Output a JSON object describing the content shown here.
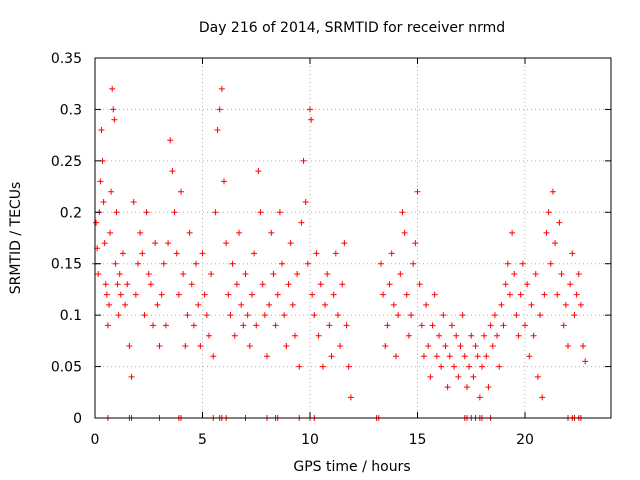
{
  "chart_data": {
    "type": "scatter",
    "title": "Day 216 of 2014, SRMTID for receiver nrmd",
    "xlabel": "GPS time / hours",
    "ylabel": "SRMTID / TECUs",
    "xlim": [
      0,
      24
    ],
    "ylim": [
      0,
      0.35
    ],
    "xticks": [
      0,
      5,
      10,
      15,
      20
    ],
    "xtick_labels": [
      "0",
      "5",
      "10",
      "15",
      "20"
    ],
    "yticks": [
      0,
      0.05,
      0.1,
      0.15,
      0.2,
      0.25,
      0.3,
      0.35
    ],
    "ytick_labels": [
      "0",
      "0.05",
      "0.1",
      "0.15",
      "0.2",
      "0.25",
      "0.3",
      "0.35"
    ],
    "grid": true,
    "marker": "+",
    "series_color": "#ff0000",
    "series": [
      {
        "name": "SRMTID",
        "points": [
          [
            0.0,
            0.15
          ],
          [
            0.05,
            0.19
          ],
          [
            0.1,
            0.165
          ],
          [
            0.15,
            0.14
          ],
          [
            0.2,
            0.2
          ],
          [
            0.25,
            0.23
          ],
          [
            0.3,
            0.28
          ],
          [
            0.35,
            0.25
          ],
          [
            0.4,
            0.21
          ],
          [
            0.45,
            0.17
          ],
          [
            0.5,
            0.13
          ],
          [
            0.55,
            0.12
          ],
          [
            0.6,
            0.09
          ],
          [
            0.65,
            0.11
          ],
          [
            0.7,
            0.18
          ],
          [
            0.75,
            0.22
          ],
          [
            0.8,
            0.32
          ],
          [
            0.85,
            0.3
          ],
          [
            0.9,
            0.29
          ],
          [
            0.95,
            0.15
          ],
          [
            1.0,
            0.2
          ],
          [
            1.05,
            0.13
          ],
          [
            1.1,
            0.1
          ],
          [
            1.15,
            0.14
          ],
          [
            1.2,
            0.12
          ],
          [
            1.3,
            0.16
          ],
          [
            1.4,
            0.11
          ],
          [
            1.5,
            0.13
          ],
          [
            1.6,
            0.07
          ],
          [
            1.7,
            0.04
          ],
          [
            1.8,
            0.21
          ],
          [
            1.9,
            0.12
          ],
          [
            2.0,
            0.15
          ],
          [
            2.1,
            0.18
          ],
          [
            2.2,
            0.16
          ],
          [
            2.3,
            0.1
          ],
          [
            2.4,
            0.2
          ],
          [
            2.5,
            0.14
          ],
          [
            2.6,
            0.13
          ],
          [
            2.7,
            0.09
          ],
          [
            2.8,
            0.17
          ],
          [
            2.9,
            0.11
          ],
          [
            3.0,
            0.07
          ],
          [
            3.1,
            0.12
          ],
          [
            3.2,
            0.15
          ],
          [
            3.3,
            0.09
          ],
          [
            3.4,
            0.17
          ],
          [
            3.5,
            0.27
          ],
          [
            3.6,
            0.24
          ],
          [
            3.7,
            0.2
          ],
          [
            3.8,
            0.16
          ],
          [
            3.9,
            0.12
          ],
          [
            4.0,
            0.22
          ],
          [
            4.1,
            0.14
          ],
          [
            4.2,
            0.07
          ],
          [
            4.3,
            0.1
          ],
          [
            4.4,
            0.18
          ],
          [
            4.5,
            0.13
          ],
          [
            4.6,
            0.09
          ],
          [
            4.7,
            0.15
          ],
          [
            4.8,
            0.11
          ],
          [
            4.9,
            0.07
          ],
          [
            5.0,
            0.16
          ],
          [
            5.1,
            0.12
          ],
          [
            5.2,
            0.1
          ],
          [
            5.3,
            0.08
          ],
          [
            5.4,
            0.14
          ],
          [
            5.5,
            0.06
          ],
          [
            5.6,
            0.2
          ],
          [
            5.7,
            0.28
          ],
          [
            5.8,
            0.3
          ],
          [
            5.9,
            0.32
          ],
          [
            6.0,
            0.23
          ],
          [
            6.1,
            0.17
          ],
          [
            6.2,
            0.12
          ],
          [
            6.3,
            0.1
          ],
          [
            6.4,
            0.15
          ],
          [
            6.5,
            0.08
          ],
          [
            6.6,
            0.13
          ],
          [
            6.7,
            0.18
          ],
          [
            6.8,
            0.11
          ],
          [
            6.9,
            0.09
          ],
          [
            7.0,
            0.14
          ],
          [
            7.1,
            0.1
          ],
          [
            7.2,
            0.07
          ],
          [
            7.3,
            0.12
          ],
          [
            7.4,
            0.16
          ],
          [
            7.5,
            0.09
          ],
          [
            7.6,
            0.24
          ],
          [
            7.7,
            0.2
          ],
          [
            7.8,
            0.13
          ],
          [
            7.9,
            0.1
          ],
          [
            8.0,
            0.06
          ],
          [
            8.1,
            0.11
          ],
          [
            8.2,
            0.18
          ],
          [
            8.3,
            0.14
          ],
          [
            8.4,
            0.09
          ],
          [
            8.5,
            0.12
          ],
          [
            8.6,
            0.2
          ],
          [
            8.7,
            0.15
          ],
          [
            8.8,
            0.1
          ],
          [
            8.9,
            0.07
          ],
          [
            9.0,
            0.13
          ],
          [
            9.1,
            0.17
          ],
          [
            9.2,
            0.11
          ],
          [
            9.3,
            0.08
          ],
          [
            9.4,
            0.14
          ],
          [
            9.5,
            0.05
          ],
          [
            9.6,
            0.19
          ],
          [
            9.7,
            0.25
          ],
          [
            9.8,
            0.21
          ],
          [
            9.9,
            0.15
          ],
          [
            10.0,
            0.3
          ],
          [
            10.05,
            0.29
          ],
          [
            10.1,
            0.12
          ],
          [
            10.2,
            0.1
          ],
          [
            10.3,
            0.16
          ],
          [
            10.4,
            0.08
          ],
          [
            10.5,
            0.13
          ],
          [
            10.6,
            0.05
          ],
          [
            10.7,
            0.11
          ],
          [
            10.8,
            0.14
          ],
          [
            10.9,
            0.09
          ],
          [
            11.0,
            0.06
          ],
          [
            11.1,
            0.12
          ],
          [
            11.2,
            0.16
          ],
          [
            11.3,
            0.1
          ],
          [
            11.4,
            0.07
          ],
          [
            11.5,
            0.13
          ],
          [
            11.6,
            0.17
          ],
          [
            11.7,
            0.09
          ],
          [
            11.8,
            0.05
          ],
          [
            11.9,
            0.02
          ],
          [
            13.3,
            0.15
          ],
          [
            13.4,
            0.12
          ],
          [
            13.5,
            0.07
          ],
          [
            13.6,
            0.09
          ],
          [
            13.7,
            0.13
          ],
          [
            13.8,
            0.16
          ],
          [
            13.9,
            0.11
          ],
          [
            14.0,
            0.06
          ],
          [
            14.1,
            0.1
          ],
          [
            14.2,
            0.14
          ],
          [
            14.3,
            0.2
          ],
          [
            14.4,
            0.18
          ],
          [
            14.5,
            0.12
          ],
          [
            14.6,
            0.08
          ],
          [
            14.7,
            0.1
          ],
          [
            14.8,
            0.15
          ],
          [
            14.9,
            0.17
          ],
          [
            15.0,
            0.22
          ],
          [
            15.1,
            0.13
          ],
          [
            15.2,
            0.09
          ],
          [
            15.3,
            0.06
          ],
          [
            15.4,
            0.11
          ],
          [
            15.5,
            0.07
          ],
          [
            15.6,
            0.04
          ],
          [
            15.7,
            0.09
          ],
          [
            15.8,
            0.12
          ],
          [
            15.9,
            0.06
          ],
          [
            16.0,
            0.08
          ],
          [
            16.1,
            0.05
          ],
          [
            16.2,
            0.1
          ],
          [
            16.3,
            0.07
          ],
          [
            16.4,
            0.03
          ],
          [
            16.5,
            0.06
          ],
          [
            16.6,
            0.09
          ],
          [
            16.7,
            0.05
          ],
          [
            16.8,
            0.08
          ],
          [
            16.9,
            0.04
          ],
          [
            17.0,
            0.07
          ],
          [
            17.1,
            0.1
          ],
          [
            17.2,
            0.06
          ],
          [
            17.3,
            0.03
          ],
          [
            17.4,
            0.05
          ],
          [
            17.5,
            0.08
          ],
          [
            17.6,
            0.04
          ],
          [
            17.7,
            0.07
          ],
          [
            17.8,
            0.06
          ],
          [
            17.9,
            0.02
          ],
          [
            18.0,
            0.05
          ],
          [
            18.1,
            0.08
          ],
          [
            18.2,
            0.06
          ],
          [
            18.3,
            0.03
          ],
          [
            18.4,
            0.09
          ],
          [
            18.5,
            0.07
          ],
          [
            18.6,
            0.1
          ],
          [
            18.7,
            0.08
          ],
          [
            18.8,
            0.05
          ],
          [
            18.9,
            0.11
          ],
          [
            19.0,
            0.09
          ],
          [
            19.1,
            0.13
          ],
          [
            19.2,
            0.15
          ],
          [
            19.3,
            0.12
          ],
          [
            19.4,
            0.18
          ],
          [
            19.5,
            0.14
          ],
          [
            19.6,
            0.1
          ],
          [
            19.7,
            0.08
          ],
          [
            19.8,
            0.12
          ],
          [
            19.9,
            0.15
          ],
          [
            20.0,
            0.09
          ],
          [
            20.1,
            0.13
          ],
          [
            20.2,
            0.06
          ],
          [
            20.3,
            0.11
          ],
          [
            20.4,
            0.08
          ],
          [
            20.5,
            0.14
          ],
          [
            20.6,
            0.04
          ],
          [
            20.7,
            0.1
          ],
          [
            20.8,
            0.02
          ],
          [
            20.9,
            0.12
          ],
          [
            21.0,
            0.18
          ],
          [
            21.1,
            0.2
          ],
          [
            21.2,
            0.15
          ],
          [
            21.3,
            0.22
          ],
          [
            21.4,
            0.17
          ],
          [
            21.5,
            0.12
          ],
          [
            21.6,
            0.19
          ],
          [
            21.7,
            0.14
          ],
          [
            21.8,
            0.09
          ],
          [
            21.9,
            0.11
          ],
          [
            22.0,
            0.07
          ],
          [
            22.1,
            0.13
          ],
          [
            22.2,
            0.16
          ],
          [
            22.3,
            0.1
          ],
          [
            22.4,
            0.12
          ],
          [
            22.5,
            0.14
          ],
          [
            22.6,
            0.11
          ],
          [
            22.7,
            0.07
          ],
          [
            22.8,
            0.055
          ]
        ]
      }
    ],
    "zero_markers": [
      0.6,
      1.6,
      1.7,
      3.0,
      3.9,
      4.0,
      5.5,
      5.8,
      5.9,
      6.1,
      7.0,
      8.0,
      8.4,
      8.5,
      9.5,
      10.0,
      10.2,
      13.1,
      13.2,
      17.2,
      17.3,
      17.5,
      17.7,
      17.9,
      18.0,
      18.4,
      22.0,
      22.2,
      22.3,
      22.5,
      22.6
    ]
  }
}
